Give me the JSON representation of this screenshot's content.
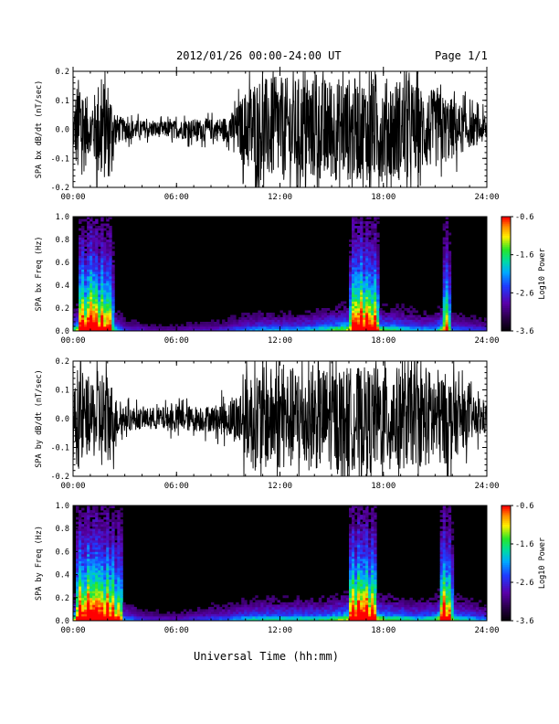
{
  "header": {
    "title": "2012/01/26  00:00-24:00 UT",
    "page": "Page 1/1"
  },
  "footer": {
    "xlabel": "Universal Time (hh:mm)"
  },
  "chart_data": [
    {
      "type": "line",
      "id": "bx_waveform",
      "ylabel": "SPA bx dB/dt (nT/sec)",
      "xlim": [
        0,
        24
      ],
      "ylim": [
        -0.2,
        0.2
      ],
      "yticks": [
        "0.2",
        "0.1",
        "0.0",
        "-0.1",
        "-0.2"
      ],
      "xticks": [
        "00:00",
        "06:00",
        "12:00",
        "18:00",
        "24:00"
      ],
      "x": [
        0,
        0.25,
        0.5,
        1,
        1.5,
        2,
        2.5,
        3,
        4,
        5,
        6,
        7,
        8,
        9,
        9.5,
        10,
        10.5,
        11,
        12,
        13,
        14,
        15,
        16,
        17,
        18,
        19,
        20,
        21,
        22,
        23,
        24
      ],
      "amplitude": [
        0.06,
        0.2,
        0.2,
        0.08,
        0.2,
        0.2,
        0.06,
        0.04,
        0.035,
        0.03,
        0.035,
        0.04,
        0.04,
        0.05,
        0.09,
        0.15,
        0.2,
        0.2,
        0.2,
        0.2,
        0.2,
        0.2,
        0.2,
        0.2,
        0.2,
        0.2,
        0.17,
        0.15,
        0.12,
        0.07,
        0.05
      ]
    },
    {
      "type": "heatmap",
      "id": "bx_spectrogram",
      "ylabel": "SPA bx Freq (Hz)",
      "xlim": [
        0,
        24
      ],
      "ylim": [
        0,
        1.0
      ],
      "yticks": [
        "1.0",
        "0.8",
        "0.6",
        "0.4",
        "0.2",
        "0.0"
      ],
      "xticks": [
        "00:00",
        "06:00",
        "12:00",
        "18:00",
        "24:00"
      ],
      "colorbar": {
        "label": "Log10 Power",
        "ticks": [
          "-0.6",
          "-1.6",
          "-2.6",
          "-3.6"
        ],
        "range": [
          -3.6,
          -0.6
        ]
      },
      "activity_x": [
        0,
        0.5,
        1,
        1.5,
        2,
        2.5,
        3,
        4,
        5,
        6,
        7,
        8,
        9,
        10,
        11,
        12,
        13,
        14,
        15,
        16,
        16.5,
        17,
        18,
        19,
        20,
        21,
        21.5,
        22,
        23,
        24
      ],
      "activity": [
        0.55,
        0.85,
        0.95,
        0.8,
        0.75,
        0.5,
        0.3,
        0.25,
        0.2,
        0.2,
        0.25,
        0.25,
        0.3,
        0.4,
        0.45,
        0.45,
        0.45,
        0.5,
        0.6,
        0.7,
        0.95,
        0.9,
        0.6,
        0.55,
        0.45,
        0.45,
        0.7,
        0.4,
        0.35,
        0.3
      ],
      "bursts_x": [
        0.5,
        1.0,
        1.3,
        1.7,
        2.1,
        16.3,
        16.7,
        17.1,
        17.5,
        21.7
      ]
    },
    {
      "type": "line",
      "id": "by_waveform",
      "ylabel": "SPA by dB/dt (nT/sec)",
      "xlim": [
        0,
        24
      ],
      "ylim": [
        -0.2,
        0.2
      ],
      "yticks": [
        "0.2",
        "0.1",
        "0.0",
        "-0.1",
        "-0.2"
      ],
      "xticks": [
        "00:00",
        "06:00",
        "12:00",
        "18:00",
        "24:00"
      ],
      "x": [
        0,
        0.25,
        0.5,
        1,
        1.5,
        2,
        2.5,
        3,
        4,
        5,
        6,
        7,
        8,
        9,
        9.5,
        10,
        10.5,
        11,
        12,
        13,
        14,
        15,
        16,
        17,
        18,
        19,
        20,
        21,
        22,
        23,
        24
      ],
      "amplitude": [
        0.08,
        0.2,
        0.2,
        0.12,
        0.2,
        0.2,
        0.08,
        0.05,
        0.04,
        0.045,
        0.05,
        0.05,
        0.05,
        0.07,
        0.1,
        0.16,
        0.2,
        0.2,
        0.2,
        0.2,
        0.2,
        0.2,
        0.2,
        0.2,
        0.2,
        0.2,
        0.18,
        0.2,
        0.16,
        0.09,
        0.06
      ]
    },
    {
      "type": "heatmap",
      "id": "by_spectrogram",
      "ylabel": "SPA by Freq (Hz)",
      "xlim": [
        0,
        24
      ],
      "ylim": [
        0,
        1.0
      ],
      "yticks": [
        "1.0",
        "0.8",
        "0.6",
        "0.4",
        "0.2",
        "0.0"
      ],
      "xticks": [
        "00:00",
        "06:00",
        "12:00",
        "18:00",
        "24:00"
      ],
      "colorbar": {
        "label": "Log10 Power",
        "ticks": [
          "-0.6",
          "-1.6",
          "-2.6",
          "-3.6"
        ],
        "range": [
          -3.6,
          -0.6
        ]
      },
      "activity_x": [
        0,
        0.5,
        1,
        1.5,
        2,
        2.5,
        3,
        4,
        5,
        6,
        7,
        8,
        9,
        10,
        11,
        12,
        13,
        14,
        15,
        16,
        16.5,
        17,
        18,
        19,
        20,
        21,
        21.5,
        22,
        23,
        24
      ],
      "activity": [
        0.65,
        0.9,
        0.95,
        0.85,
        0.85,
        0.7,
        0.45,
        0.3,
        0.25,
        0.25,
        0.3,
        0.35,
        0.4,
        0.5,
        0.55,
        0.55,
        0.55,
        0.55,
        0.6,
        0.75,
        0.95,
        0.9,
        0.65,
        0.6,
        0.5,
        0.6,
        0.85,
        0.6,
        0.5,
        0.4
      ],
      "bursts_x": [
        0.4,
        0.9,
        1.3,
        1.6,
        2.0,
        2.3,
        2.7,
        16.2,
        16.6,
        17.0,
        17.4,
        21.5,
        21.8
      ]
    }
  ]
}
